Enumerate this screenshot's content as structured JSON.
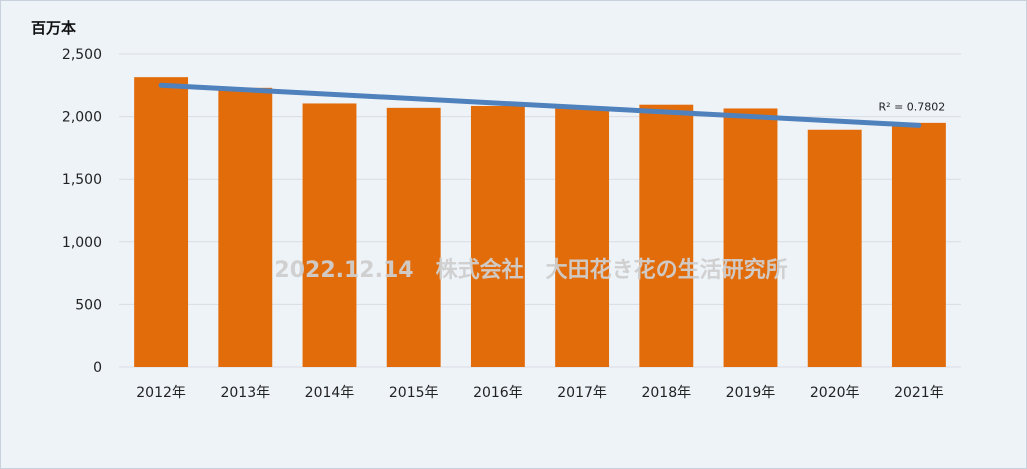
{
  "chart_data": {
    "type": "bar",
    "unit_label": "百万本",
    "categories": [
      "2012年",
      "2013年",
      "2014年",
      "2015年",
      "2016年",
      "2017年",
      "2018年",
      "2019年",
      "2020年",
      "2021年"
    ],
    "values": [
      2315,
      2230,
      2105,
      2070,
      2085,
      2080,
      2095,
      2065,
      1895,
      1950
    ],
    "ylim": [
      0,
      2500
    ],
    "yticks": [
      0,
      500,
      1000,
      1500,
      2000,
      2500
    ],
    "ytick_labels": [
      "0",
      "500",
      "1,000",
      "1,500",
      "2,000",
      "2,500"
    ],
    "grid": true,
    "legend": "none",
    "trendline": {
      "type": "linear",
      "start": 2250,
      "end": 1930,
      "r2_label": "R² = 0.7802"
    },
    "watermark": "2022.12.14　株式会社　大田花き花の生活研究所",
    "colors": {
      "bar": "#e36c0a",
      "trend": "#4f81bd",
      "grid": "#d9dde3",
      "background": "#eef3f8"
    }
  }
}
